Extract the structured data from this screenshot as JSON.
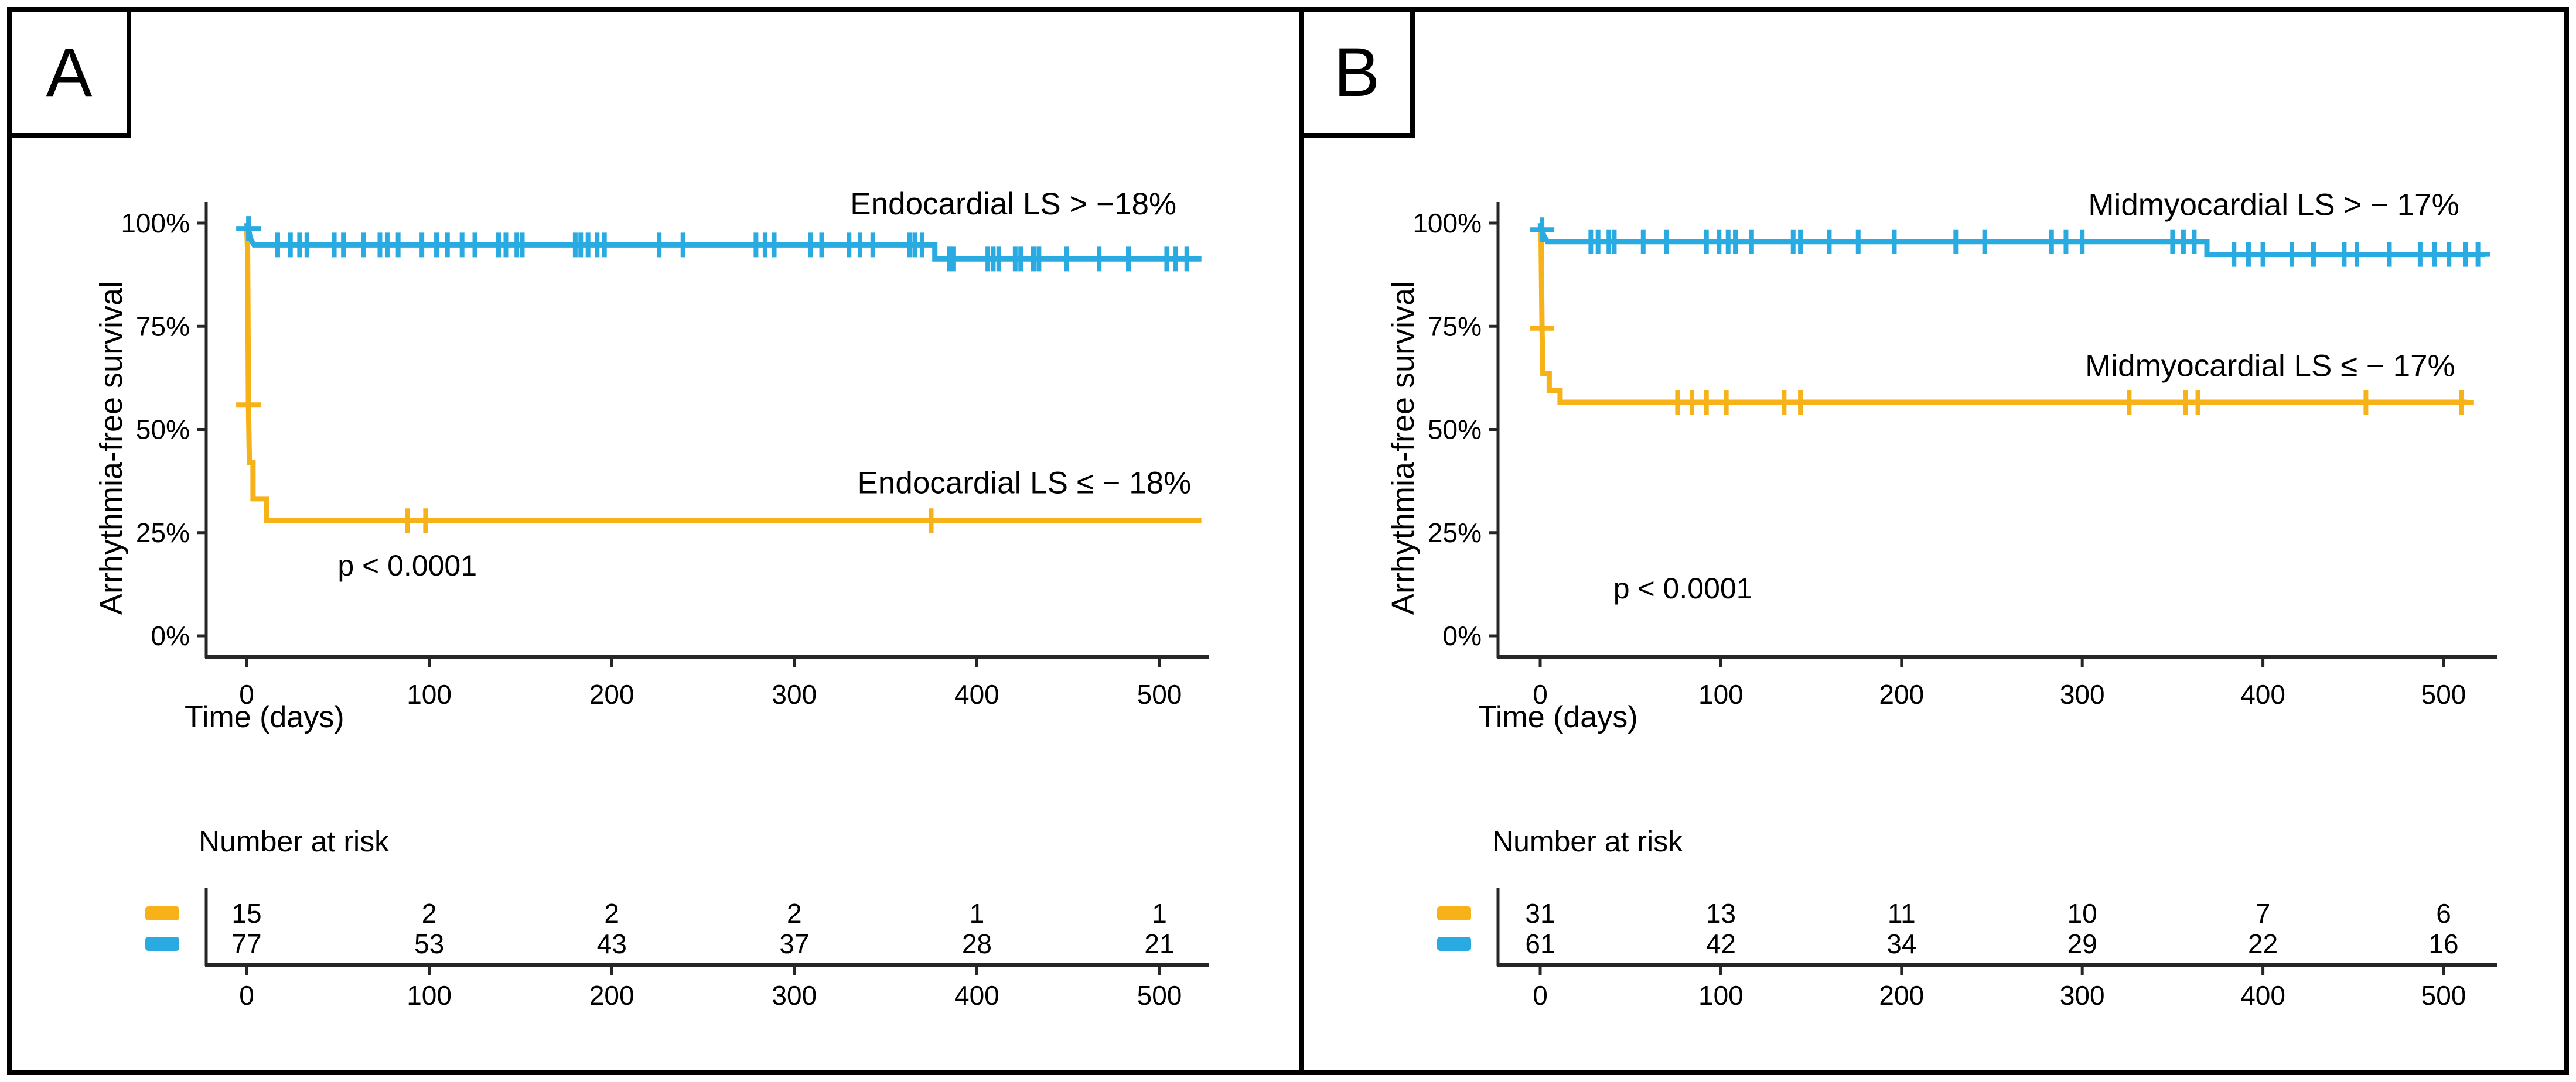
{
  "colors": {
    "low_group": "#F7B219",
    "high_group": "#29ABE2",
    "axis": "#262626",
    "text": "#000000",
    "background": "#ffffff",
    "border": "#000000"
  },
  "panels": [
    {
      "letter": "A",
      "y_axis_title": "Arrhythmia-free survival",
      "x_axis_title": "Time (days)",
      "y_tick_labels": [
        "100%",
        "75%",
        "50%",
        "25%",
        "0%"
      ],
      "x_tick_labels": [
        "0",
        "100",
        "200",
        "300",
        "400",
        "500"
      ],
      "p_value_text": "p < 0.0001",
      "risk_table": {
        "title": "Number at risk",
        "x_tick_labels": [
          "0",
          "100",
          "200",
          "300",
          "400",
          "500"
        ]
      }
    },
    {
      "letter": "B",
      "y_axis_title": "Arrhythmia-free survival",
      "x_axis_title": "Time (days)",
      "y_tick_labels": [
        "100%",
        "75%",
        "50%",
        "25%",
        "0%"
      ],
      "x_tick_labels": [
        "0",
        "100",
        "200",
        "300",
        "400",
        "500"
      ],
      "p_value_text": "p < 0.0001",
      "risk_table": {
        "title": "Number at risk",
        "x_tick_labels": [
          "0",
          "100",
          "200",
          "300",
          "400",
          "500"
        ]
      }
    }
  ],
  "chart_data": [
    {
      "type": "line",
      "subtype": "kaplan-meier-step",
      "title": "",
      "xlabel": "Time (days)",
      "ylabel": "Arrhythmia-free survival",
      "xlim": [
        0,
        523
      ],
      "ylim": [
        0,
        100
      ],
      "x_ticks": [
        0,
        100,
        200,
        300,
        400,
        500
      ],
      "y_ticks_pct": [
        100,
        75,
        50,
        25,
        0
      ],
      "grid": false,
      "legend_position": "labels-on-plot",
      "p_value": {
        "text": "p < 0.0001",
        "day": 88,
        "pct": 17
      },
      "series": [
        {
          "name": "Endocardial LS ≤ − 18%",
          "color": "#F7B219",
          "steps": [
            [
              0,
              100
            ],
            [
              0.5,
              93.5
            ],
            [
              1,
              56
            ],
            [
              1.5,
              42
            ],
            [
              3.5,
              42
            ],
            [
              3.5,
              33.2
            ],
            [
              11,
              33.2
            ],
            [
              11,
              27.9
            ],
            [
              523,
              27.9
            ]
          ],
          "censor_days": [
            1,
            88,
            98,
            375
          ],
          "at_risk": [
            "15",
            "2",
            "2",
            "2",
            "1",
            "1"
          ],
          "label": {
            "day": 426,
            "pct": 37
          }
        },
        {
          "name": "Endocardial LS > −18%",
          "color": "#29ABE2",
          "steps": [
            [
              0,
              100
            ],
            [
              1,
              98.7
            ],
            [
              2,
              96.3
            ],
            [
              4,
              94.7
            ],
            [
              377,
              94.7
            ],
            [
              377,
              91.3
            ],
            [
              523,
              91.3
            ]
          ],
          "censor_days": [
            1,
            17,
            24,
            29,
            33,
            48,
            53,
            64,
            73,
            77,
            83,
            96,
            104,
            110,
            118,
            125,
            138,
            142,
            148,
            151,
            180,
            183,
            187,
            192,
            196,
            226,
            239,
            279,
            284,
            289,
            309,
            315,
            330,
            336,
            343,
            363,
            366,
            370,
            385,
            387,
            406,
            409,
            412,
            421,
            424,
            431,
            434,
            449,
            467,
            483,
            504,
            509,
            515
          ],
          "at_risk": [
            "77",
            "53",
            "43",
            "37",
            "28",
            "21"
          ],
          "label": {
            "day": 420,
            "pct": 104.6
          }
        }
      ]
    },
    {
      "type": "line",
      "subtype": "kaplan-meier-step",
      "title": "",
      "xlabel": "Time (days)",
      "ylabel": "Arrhythmia-free survival",
      "xlim": [
        0,
        523
      ],
      "ylim": [
        0,
        100
      ],
      "x_ticks": [
        0,
        100,
        200,
        300,
        400,
        500
      ],
      "y_ticks_pct": [
        100,
        75,
        50,
        25,
        0
      ],
      "grid": false,
      "legend_position": "labels-on-plot",
      "p_value": {
        "text": "p < 0.0001",
        "day": 79,
        "pct": 11.5
      },
      "series": [
        {
          "name": "Midmyocardial LS ≤ − 17%",
          "color": "#F7B219",
          "steps": [
            [
              0,
              100
            ],
            [
              0.5,
              96.8
            ],
            [
              1,
              74.5
            ],
            [
              1.5,
              63.5
            ],
            [
              5,
              63.5
            ],
            [
              5,
              59.5
            ],
            [
              11,
              59.5
            ],
            [
              11,
              56.6
            ],
            [
              513,
              56.6
            ]
          ],
          "censor_days": [
            1,
            76,
            84,
            92,
            103,
            135,
            144,
            326,
            357,
            364,
            457,
            510
          ],
          "at_risk": [
            "31",
            "13",
            "11",
            "10",
            "7",
            "6"
          ],
          "label": {
            "day": 404,
            "pct": 65.4
          }
        },
        {
          "name": "Midmyocardial LS > − 17%",
          "color": "#29ABE2",
          "steps": [
            [
              0,
              100
            ],
            [
              1,
              98.4
            ],
            [
              2,
              96.9
            ],
            [
              4,
              95.5
            ],
            [
              369,
              95.5
            ],
            [
              369,
              92.4
            ],
            [
              523,
              92.4
            ]
          ],
          "censor_days": [
            1,
            28,
            32,
            38,
            41,
            57,
            70,
            92,
            99,
            104,
            108,
            117,
            140,
            144,
            160,
            176,
            196,
            230,
            246,
            283,
            291,
            300,
            350,
            356,
            362,
            384,
            392,
            400,
            416,
            428,
            445,
            452,
            470,
            487,
            495,
            503,
            512,
            519
          ],
          "at_risk": [
            "61",
            "42",
            "34",
            "29",
            "22",
            "16"
          ],
          "label": {
            "day": 406,
            "pct": 104.4
          }
        }
      ]
    }
  ]
}
